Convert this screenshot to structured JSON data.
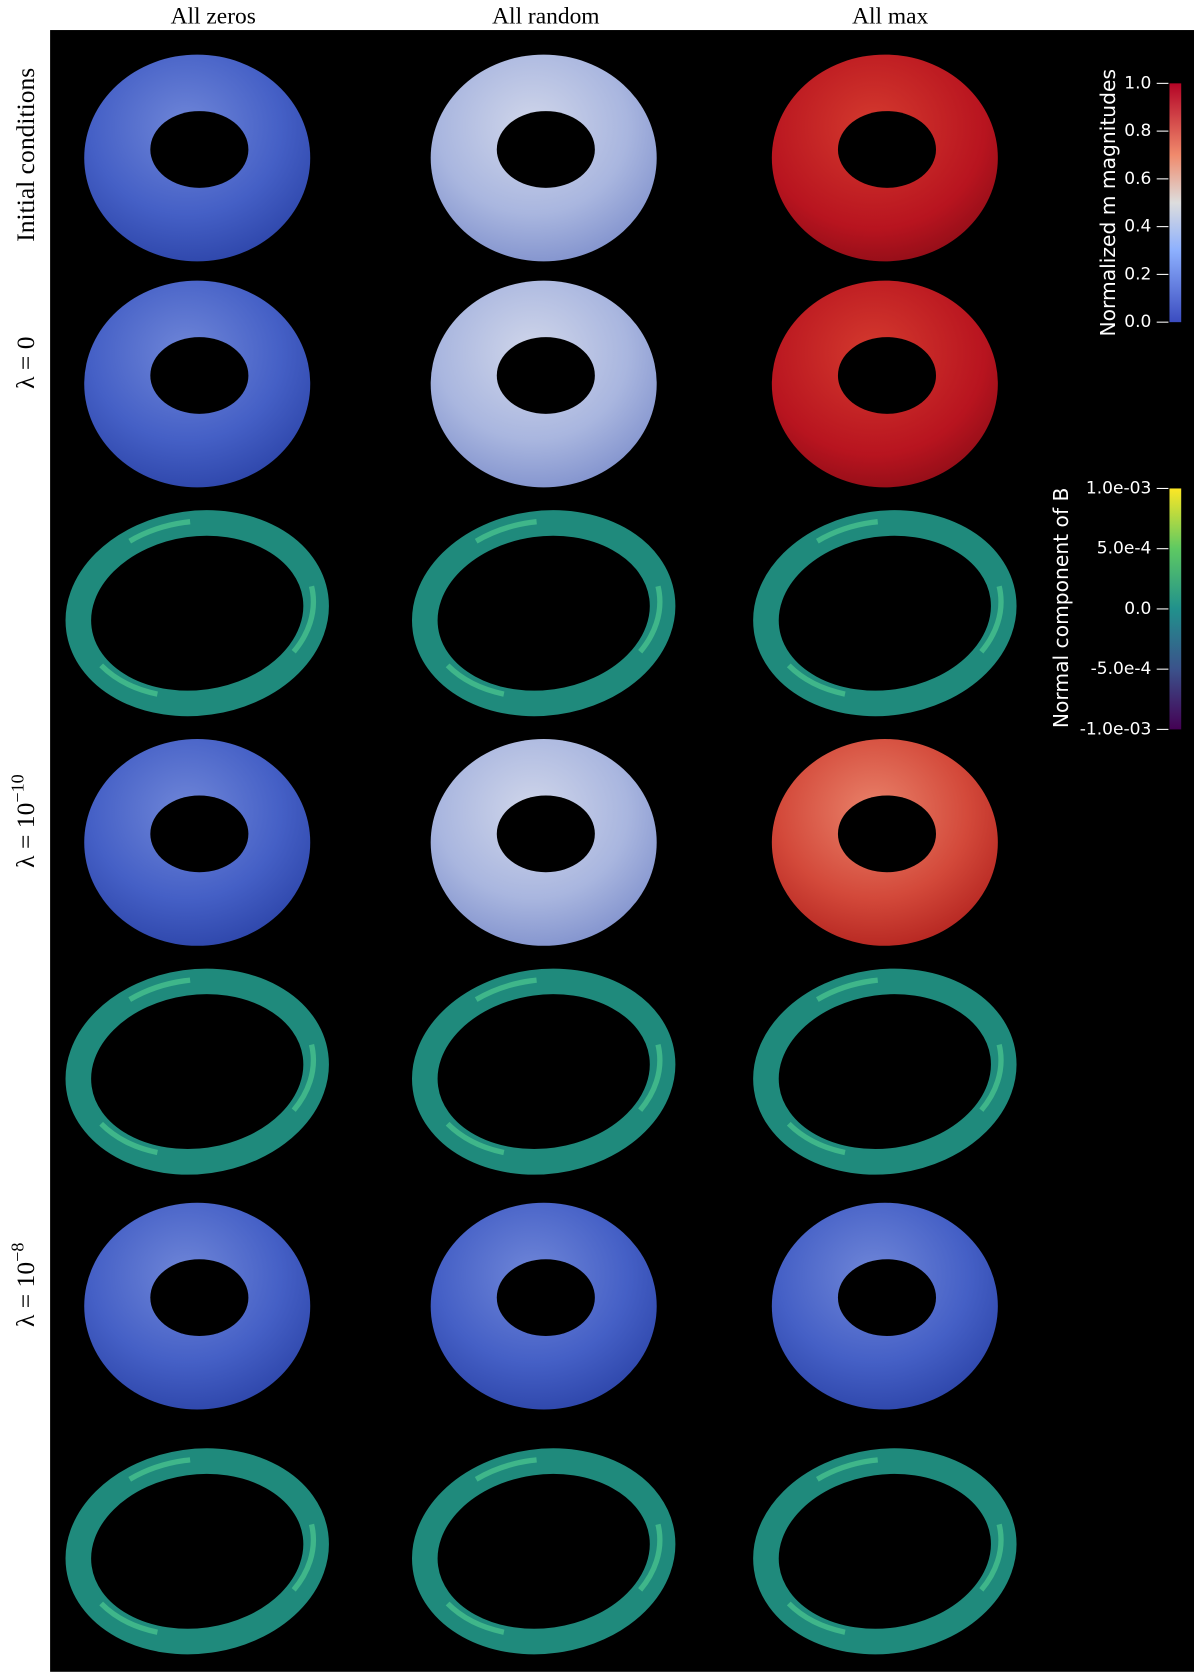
{
  "header": {
    "columns": [
      "All zeros",
      "All random",
      "All max"
    ]
  },
  "rows": {
    "labels": [
      {
        "text": "Initial conditions"
      },
      {
        "base": "λ = 0"
      },
      {
        "base": "λ = 10",
        "exp": "−10"
      },
      {
        "base": "λ = 10",
        "exp": "−8"
      }
    ]
  },
  "colorbars": [
    {
      "title": "Normalized m magnitudes",
      "ticks": [
        "1.0",
        "0.8",
        "0.6",
        "0.4",
        "0.2",
        "0.0"
      ]
    },
    {
      "title": "Normal component of B",
      "ticks": [
        "1.0e-03",
        "5.0e-4",
        "0.0",
        "-5.0e-4",
        "-1.0e-03"
      ]
    }
  ]
}
